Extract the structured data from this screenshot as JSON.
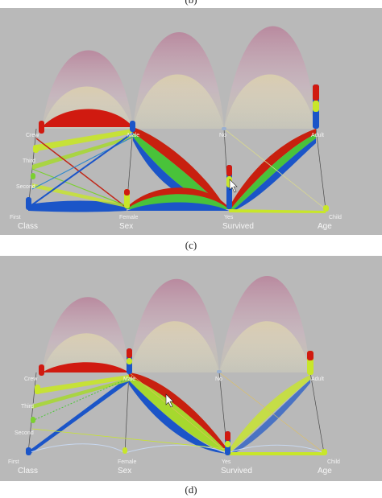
{
  "captions": {
    "top": "(b)",
    "middle": "(c)",
    "bottom": "(d)"
  },
  "panel_c": {
    "categories": {
      "class": [
        "Crew",
        "Third",
        "Second",
        "First"
      ],
      "sex": [
        "Male",
        "Female"
      ],
      "survived": [
        "No",
        "Yes"
      ],
      "age": [
        "Adult",
        "Child"
      ]
    },
    "axes": [
      "Class",
      "Sex",
      "Survived",
      "Age"
    ]
  },
  "panel_d": {
    "categories": {
      "class": [
        "Crew",
        "Third",
        "Second",
        "First"
      ],
      "sex": [
        "Male",
        "Female"
      ],
      "survived": [
        "No",
        "Yes"
      ],
      "age": [
        "Adult",
        "Child"
      ]
    },
    "axes": [
      "Class",
      "Sex",
      "Survived",
      "Age"
    ]
  },
  "colors": {
    "background": "#b9b9b9",
    "red": "#d01a10",
    "yellow_green": "#c8e62a",
    "green": "#4ec63a",
    "blue": "#1b55c8",
    "pink": "#c996ac"
  }
}
